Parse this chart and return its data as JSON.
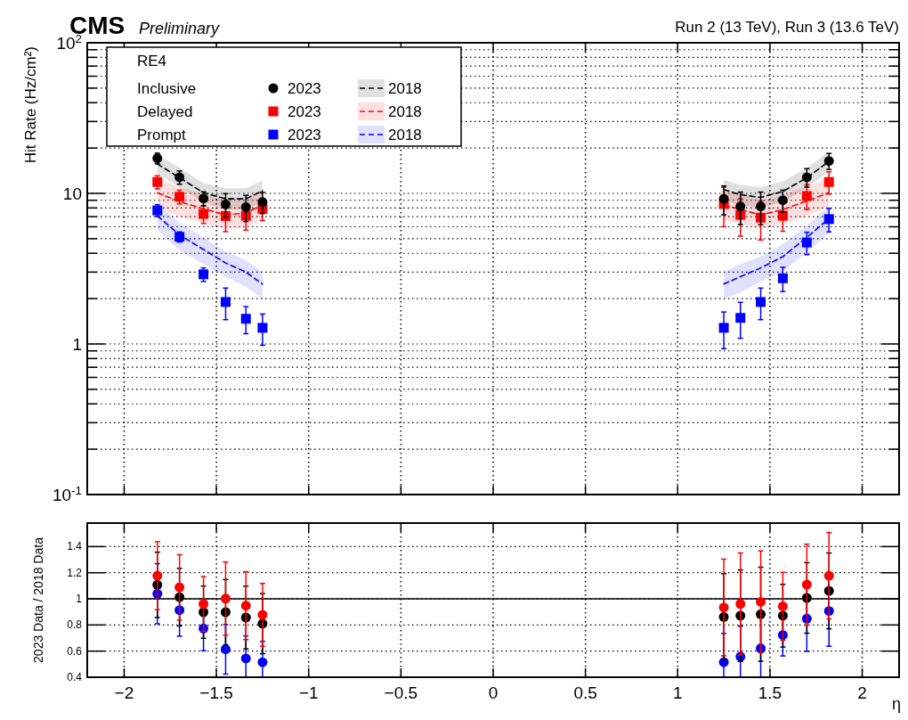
{
  "chart_data": [
    {
      "type": "scatter",
      "title": "CMS",
      "subtitle": "Preliminary",
      "ylabel": "Hit Rate (Hz/cm²)",
      "legend_title": "RE4",
      "legend": "top left",
      "log": "y",
      "grid": true,
      "tick_labels": "y",
      "annotations": [
        "Run 2 (13 TeV), Run 3 (13.6 TeV)",
        "Inclusive",
        "Delayed",
        "Prompt"
      ],
      "xlim": [
        -2.2,
        2.2
      ],
      "xticks": [
        {
          "value": -2,
          "label": null
        },
        {
          "value": -1.5,
          "label": null
        },
        {
          "value": -1,
          "label": null
        },
        {
          "value": -0.5,
          "label": null
        },
        {
          "value": 0,
          "label": null
        },
        {
          "value": 0.5,
          "label": null
        },
        {
          "value": 1,
          "label": null
        },
        {
          "value": 1.5,
          "label": null
        },
        {
          "value": 2,
          "label": null
        }
      ],
      "ylim": [
        0.1,
        100
      ],
      "yticks": [
        {
          "value": 0.1,
          "label": "10$^{-1}$"
        },
        {
          "value": 0.2,
          "label": null
        },
        {
          "value": 0.3,
          "label": null
        },
        {
          "value": 0.4,
          "label": null
        },
        {
          "value": 0.5,
          "label": null
        },
        {
          "value": 0.6,
          "label": null
        },
        {
          "value": 0.7,
          "label": null
        },
        {
          "value": 0.8,
          "label": null
        },
        {
          "value": 0.9,
          "label": null
        },
        1,
        {
          "value": 2,
          "label": null
        },
        {
          "value": 3,
          "label": null
        },
        {
          "value": 4,
          "label": null
        },
        {
          "value": 5,
          "label": null
        },
        {
          "value": 6,
          "label": null
        },
        {
          "value": 7,
          "label": null
        },
        {
          "value": 8,
          "label": null
        },
        {
          "value": 9,
          "label": null
        },
        10,
        {
          "value": 20,
          "label": null
        },
        {
          "value": 30,
          "label": null
        },
        {
          "value": 40,
          "label": null
        },
        {
          "value": 50,
          "label": null
        },
        {
          "value": 60,
          "label": null
        },
        {
          "value": 70,
          "label": null
        },
        {
          "value": 80,
          "label": null
        },
        {
          "value": 90,
          "label": null
        },
        {
          "value": 100,
          "label": "10$^{2}$"
        }
      ],
      "x": [
        -1.82,
        -1.7,
        -1.57,
        -1.45,
        -1.34,
        -1.25,
        0,
        1.25,
        1.34,
        1.45,
        1.57,
        1.7,
        1.82
      ],
      "series": [
        {
          "name": "2023",
          "type": "scatter",
          "marker": "circle",
          "color": "#000000",
          "values": [
            17.1,
            12.8,
            9.25,
            8.45,
            8.1,
            8.75,
            null,
            9.2,
            8.2,
            8.2,
            9.0,
            12.8,
            16.4
          ],
          "errors": [
            1.4,
            1.3,
            1.0,
            1.5,
            1.6,
            1.4,
            null,
            2.0,
            2.0,
            2.0,
            1.5,
            1.8,
            2.0
          ]
        },
        {
          "name": "2023",
          "type": "scatter",
          "marker": "square",
          "color": "#ff0000",
          "values": [
            11.9,
            9.5,
            7.3,
            7.07,
            7.1,
            7.9,
            null,
            8.5,
            7.2,
            6.9,
            7.1,
            9.6,
            11.9
          ],
          "errors": [
            1.2,
            1.0,
            1.0,
            1.5,
            1.4,
            1.3,
            null,
            2.5,
            2.0,
            2.0,
            1.5,
            1.8,
            2.0
          ]
        },
        {
          "name": "2023",
          "type": "scatter",
          "marker": "square",
          "color": "#0000ff",
          "values": [
            7.7,
            5.15,
            2.9,
            1.9,
            1.47,
            1.28,
            null,
            1.28,
            1.49,
            1.9,
            2.73,
            4.72,
            6.75
          ],
          "errors": [
            0.7,
            0.4,
            0.3,
            0.45,
            0.3,
            0.3,
            null,
            0.35,
            0.4,
            0.45,
            0.5,
            0.8,
            1.2
          ]
        },
        {
          "name": "2018",
          "type": "line",
          "line_style": "dashed",
          "color": "#000000",
          "values": [
            15.7,
            12.7,
            10.1,
            9.2,
            9.2,
            10.4,
            null,
            10.6,
            9.8,
            9.4,
            10.3,
            12.7,
            16.3
          ],
          "lower": [
            13.5,
            11,
            8.7,
            7.8,
            7.8,
            8.8,
            null,
            9.0,
            8.3,
            8.0,
            8.8,
            10.9,
            14
          ],
          "upper": [
            18,
            14.8,
            11.7,
            10.8,
            10.8,
            12.2,
            null,
            12.3,
            11.4,
            11,
            12,
            14.8,
            18.9
          ]
        },
        {
          "name": "2018",
          "type": "line",
          "line_style": "dashed",
          "color": "#ff0000",
          "values": [
            10.1,
            8.8,
            7.9,
            7.2,
            7.4,
            8.4,
            null,
            8.4,
            7.8,
            7.2,
            7.8,
            8.9,
            10.1
          ],
          "lower": [
            8.1,
            7.0,
            6.3,
            5.8,
            5.9,
            6.7,
            null,
            6.7,
            6.2,
            5.8,
            6.2,
            7.1,
            8.1
          ],
          "upper": [
            12.6,
            11,
            9.9,
            9.0,
            9.3,
            10.5,
            null,
            10.5,
            9.8,
            9,
            9.8,
            11.1,
            12.6
          ]
        },
        {
          "name": "2018",
          "type": "line",
          "line_style": "dashed",
          "color": "#0000ff",
          "values": [
            7.1,
            5.3,
            4.24,
            3.45,
            3.0,
            2.5,
            null,
            2.5,
            2.8,
            3.2,
            3.8,
            5.1,
            6.8
          ],
          "lower": [
            5.7,
            4.2,
            3.4,
            2.8,
            2.4,
            2.0,
            null,
            2.0,
            2.2,
            2.6,
            3.0,
            4.1,
            5.4
          ],
          "upper": [
            8.5,
            6.4,
            5.1,
            4.1,
            3.6,
            3.0,
            null,
            3.0,
            3.4,
            3.8,
            4.6,
            6.1,
            8.2
          ]
        }
      ]
    },
    {
      "type": "scatter",
      "xlabel": "η",
      "ylabel": "2023 Data / 2018 Data",
      "grid": true,
      "marker": "circle",
      "xlim": [
        -2.2,
        2.2
      ],
      "xticks": [
        {
          "value": -2,
          "label": "−2"
        },
        {
          "value": -1.5,
          "label": "−1.5"
        },
        {
          "value": -1,
          "label": "−1"
        },
        {
          "value": -0.5,
          "label": "−0.5"
        },
        0,
        0.5,
        1,
        1.5,
        2
      ],
      "ylim": [
        0.4,
        1.58
      ],
      "yticks": [
        0.4,
        0.6,
        0.8,
        1,
        1.2,
        1.4
      ],
      "ref_lines": [
        {
          "axis": "y",
          "value": 1,
          "color": "#000000",
          "line_style": "solid"
        }
      ],
      "x": [
        -1.82,
        -1.7,
        -1.57,
        -1.45,
        -1.34,
        -1.25,
        1.25,
        1.34,
        1.45,
        1.57,
        1.7,
        1.82
      ],
      "series": [
        {
          "color": "#ff0000",
          "values": [
            1.177,
            1.088,
            0.961,
            1.002,
            0.948,
            0.878,
            0.934,
            0.961,
            0.977,
            0.943,
            1.109,
            1.177
          ],
          "errors": [
            0.26,
            0.25,
            0.21,
            0.28,
            0.26,
            0.24,
            0.37,
            0.39,
            0.39,
            0.26,
            0.31,
            0.33
          ]
        },
        {
          "color": "#000000",
          "values": [
            1.107,
            1.013,
            0.898,
            0.898,
            0.857,
            0.81,
            0.862,
            0.871,
            0.882,
            0.871,
            1.007,
            1.061
          ],
          "errors": [
            0.25,
            0.22,
            0.2,
            0.25,
            0.24,
            0.23,
            0.33,
            0.35,
            0.36,
            0.24,
            0.27,
            0.29
          ]
        },
        {
          "color": "#0000ff",
          "values": [
            1.039,
            0.914,
            0.773,
            0.614,
            0.544,
            0.515,
            0.515,
            0.558,
            0.621,
            0.723,
            0.848,
            0.907
          ],
          "errors": [
            0.23,
            0.2,
            0.17,
            0.19,
            [
              0.4,
              0.716
            ],
            [
              0.4,
              0.674
            ],
            [
              0.4,
              0.735
            ],
            [
              0.4,
              0.79
            ],
            [
              0.4,
              0.884
            ],
            0.16,
            0.25,
            0.27
          ]
        }
      ]
    }
  ]
}
